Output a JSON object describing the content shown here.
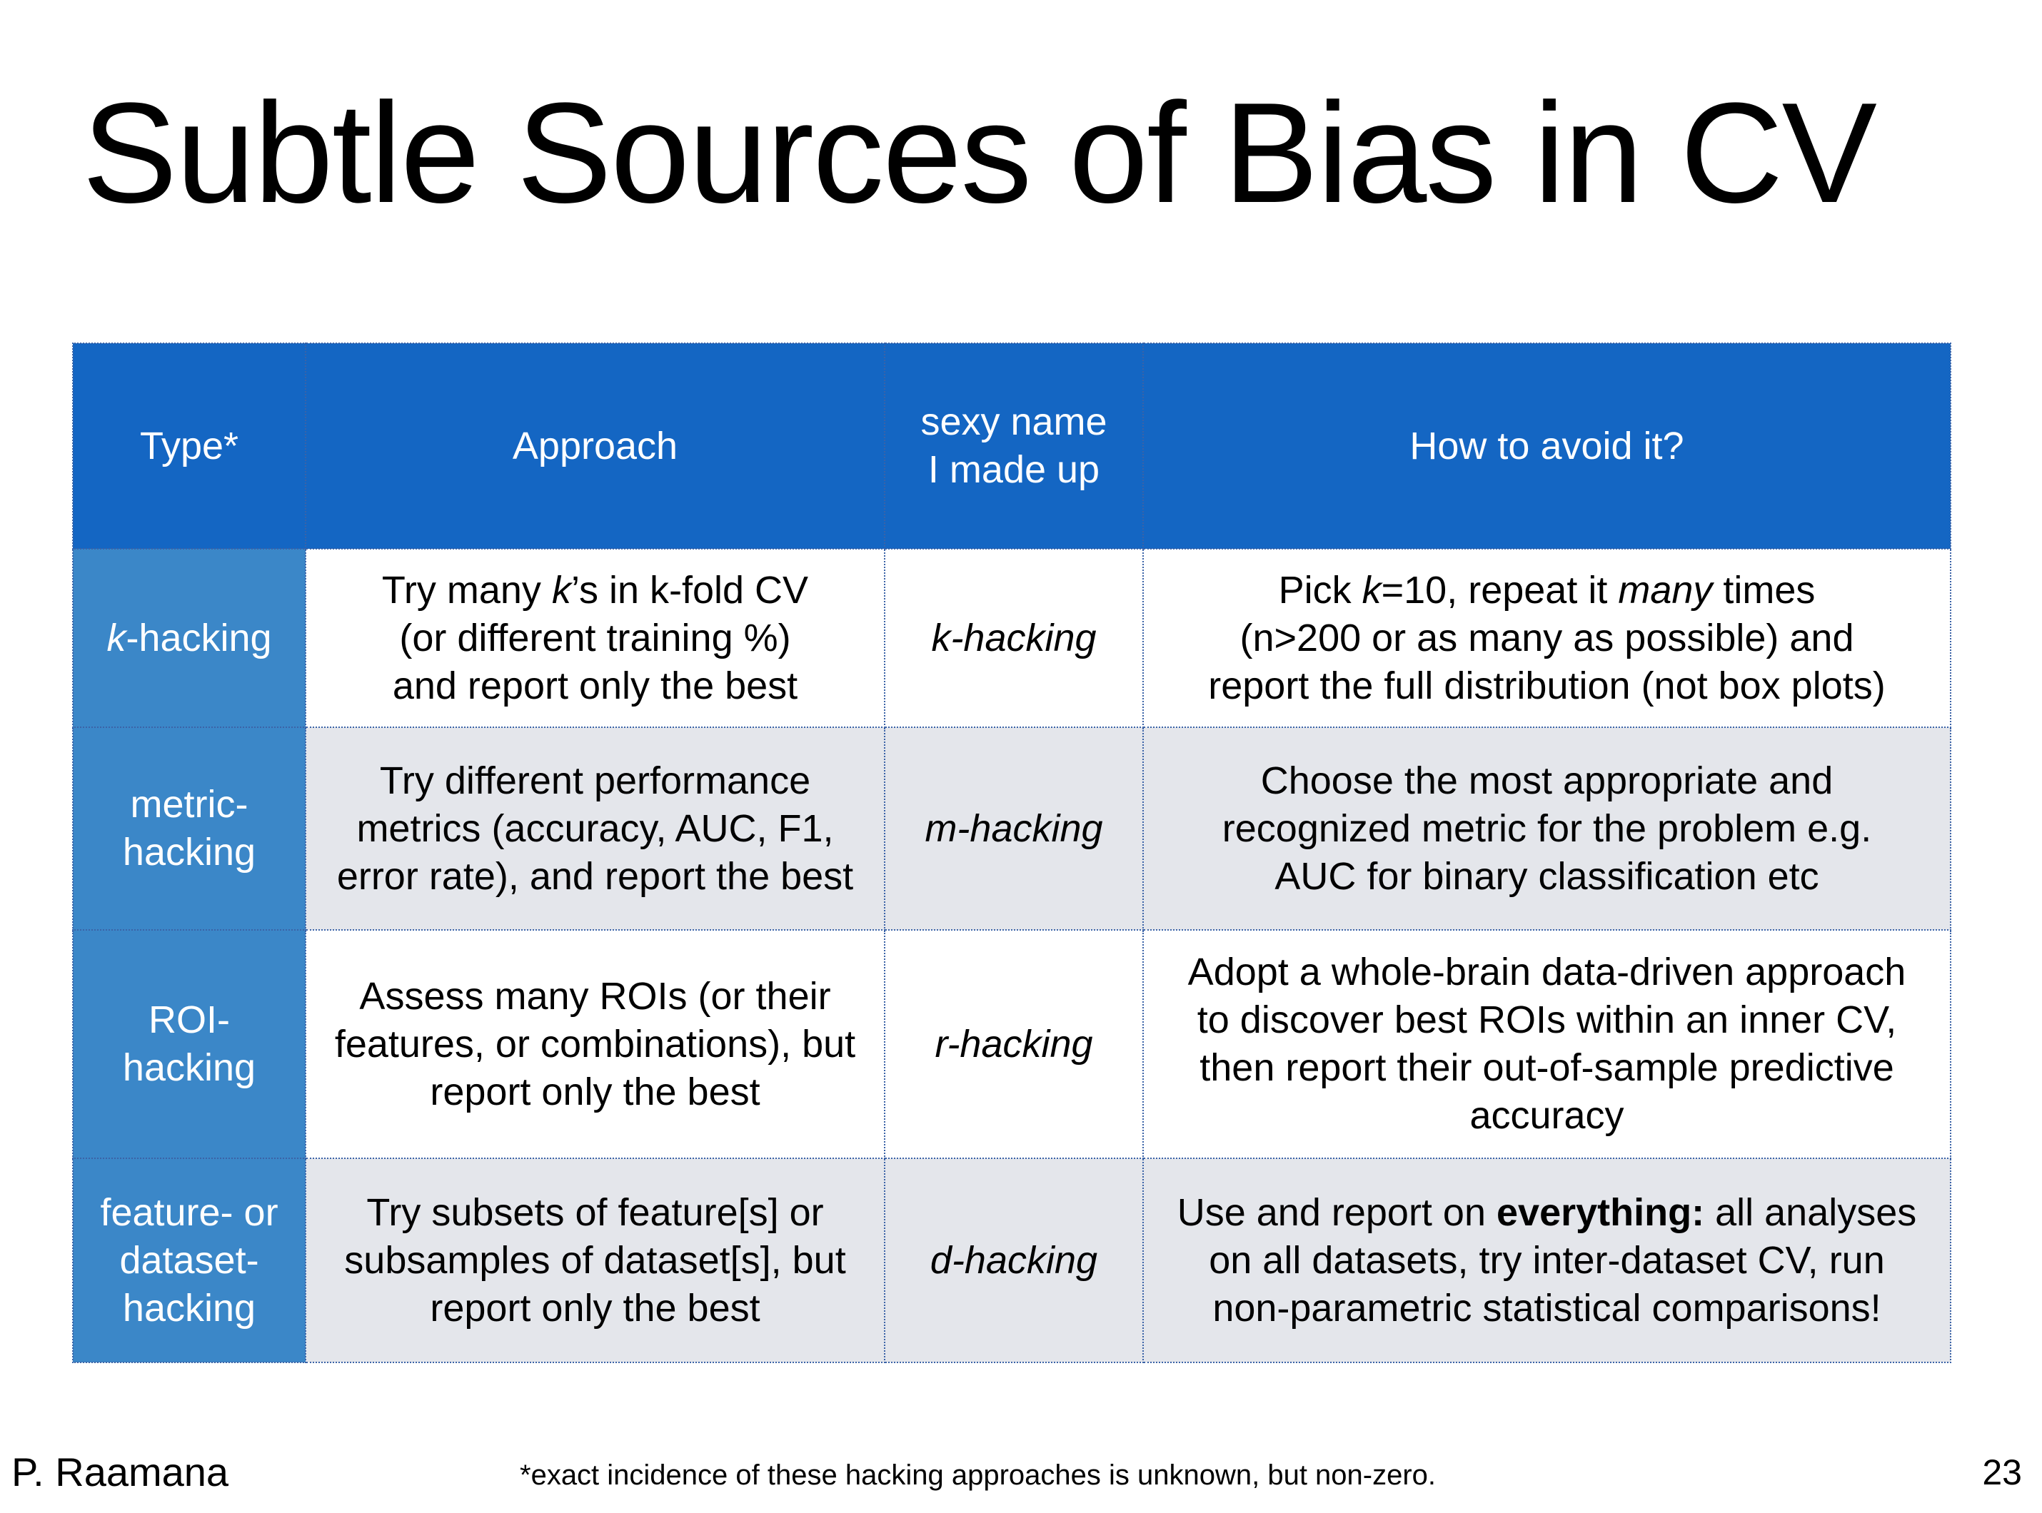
{
  "slide": {
    "title": "Subtle Sources of Bias in CV",
    "author": "P. Raamana",
    "footnote": "*exact incidence of these hacking approaches is unknown, but non-zero.",
    "page_number": "23"
  },
  "table": {
    "headers": {
      "type": "Type*",
      "approach": "Approach",
      "name_line1": "sexy name",
      "name_line2": "I made up",
      "avoid": "How to avoid it?"
    },
    "rows": [
      {
        "type_em": "k",
        "type_rest": "-hacking",
        "approach": [
          {
            "pre": "Try many ",
            "em": "k",
            "post": "’s in k-fold CV"
          },
          "(or different training %)",
          "and report only the best"
        ],
        "name": "k-hacking",
        "avoid": [
          {
            "pre": "Pick ",
            "em": "k",
            "mid": "=10, repeat it ",
            "em2": "many",
            "post": " times"
          },
          "(n>200 or as many as possible) and",
          "report the full distribution (not box plots)"
        ]
      },
      {
        "type_lines": [
          "metric-",
          "hacking"
        ],
        "approach": [
          "Try different performance",
          "metrics (accuracy, AUC, F1,",
          "error rate), and report the best"
        ],
        "name": "m-hacking",
        "avoid": [
          "Choose the most appropriate and",
          "recognized metric for the problem e.g.",
          "AUC for binary classification etc"
        ]
      },
      {
        "type_lines": [
          "ROI-",
          "hacking"
        ],
        "approach": [
          "Assess many ROIs (or their",
          "features, or combinations), but",
          "report only the best"
        ],
        "name": "r-hacking",
        "avoid": [
          "Adopt a whole-brain data-driven approach",
          "to discover best ROIs within an inner CV,",
          "then report their out-of-sample predictive",
          "accuracy"
        ]
      },
      {
        "type_lines": [
          "feature- or",
          "dataset-",
          "hacking"
        ],
        "approach": [
          "Try subsets of feature[s] or",
          "subsamples of dataset[s], but",
          "report only the best"
        ],
        "name": "d-hacking",
        "avoid_first": {
          "pre": "Use and report on ",
          "bold": "everything:",
          "post": " all analyses"
        },
        "avoid": [
          "on all datasets, try inter-dataset CV, run",
          "non-parametric statistical comparisons!"
        ]
      }
    ]
  }
}
